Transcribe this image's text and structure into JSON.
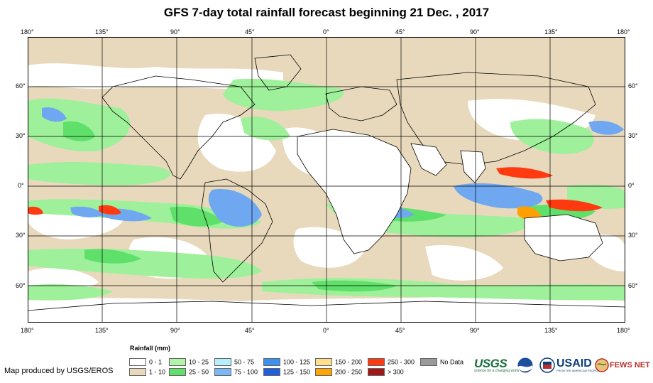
{
  "title": "GFS 7-day total rainfall forecast beginning 21 Dec. , 2017",
  "map": {
    "longitude_labels": [
      "180°",
      "135°",
      "90°",
      "45°",
      "0°",
      "45°",
      "90°",
      "135°",
      "180°"
    ],
    "latitude_labels": [
      "60°",
      "30°",
      "0°",
      "30°",
      "60°"
    ],
    "colors": {
      "ocean_dry": "#ffffff",
      "light_rain": "#e8d9bc",
      "moderate_rain": "#9ef09a",
      "heavy_green": "#5fe06a",
      "blue_light": "#a8d6ff",
      "blue_mid": "#6fa8f0",
      "blue_dark": "#2b6ee0",
      "red": "#ff3a10",
      "orange": "#ffa000",
      "gridline": "#000000"
    }
  },
  "legend": {
    "title": "Rainfall (mm)",
    "items": [
      {
        "label": "0 - 1",
        "color": "#ffffff"
      },
      {
        "label": "1 - 10",
        "color": "#e8d9bc"
      },
      {
        "label": "10 - 25",
        "color": "#aef5a8"
      },
      {
        "label": "25 - 50",
        "color": "#5fe06a"
      },
      {
        "label": "50 - 75",
        "color": "#b6eefc"
      },
      {
        "label": "75 - 100",
        "color": "#7ab8f5"
      },
      {
        "label": "100 - 125",
        "color": "#3d8ff0"
      },
      {
        "label": "125 - 150",
        "color": "#1f5fdc"
      },
      {
        "label": "150 - 200",
        "color": "#ffe08a"
      },
      {
        "label": "200 - 250",
        "color": "#ffa500"
      },
      {
        "label": "250 - 300",
        "color": "#ff3a10"
      },
      {
        "label": "> 300",
        "color": "#a01818"
      },
      {
        "label": "No Data",
        "color": "#9a9a9a"
      }
    ]
  },
  "credit": "Map produced by USGS/EROS",
  "logos": {
    "usgs": "USGS",
    "usgs_tagline": "science for a changing world",
    "usaid": "USAID",
    "usaid_tagline": "FROM THE AMERICAN PEOPLE",
    "fews": "FEWS NET"
  }
}
